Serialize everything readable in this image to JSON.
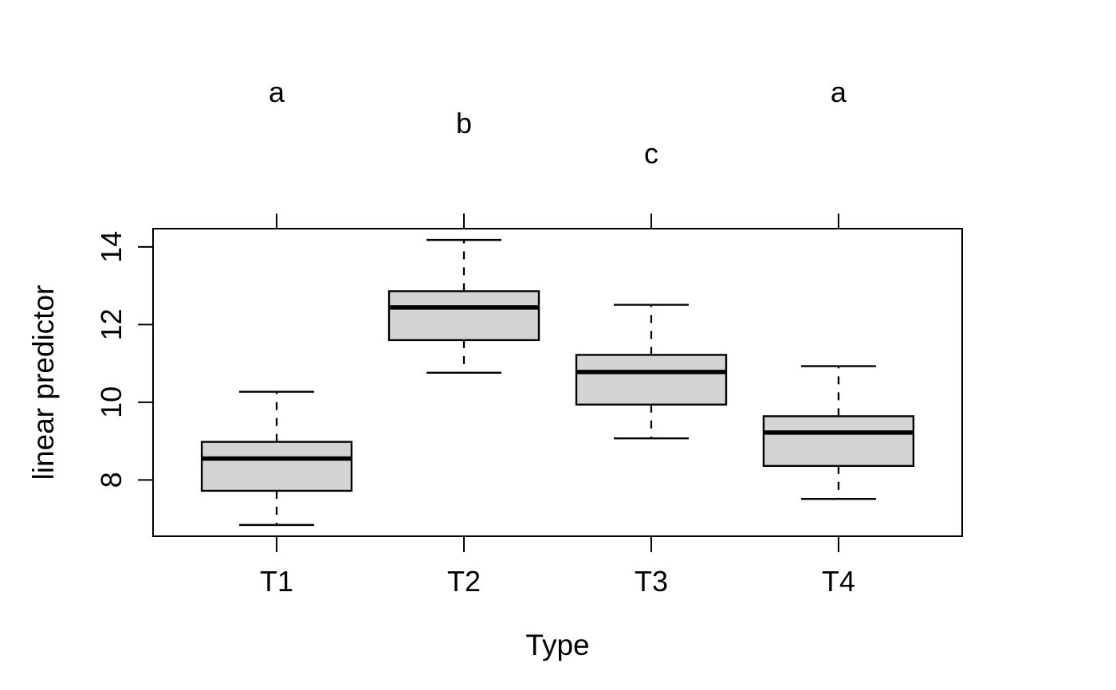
{
  "figure": {
    "background": "#ffffff",
    "text_color": "#000000"
  },
  "chart_data": {
    "type": "boxplot",
    "title": "",
    "xlabel": "Type",
    "ylabel": "linear predictor",
    "categories": [
      "T1",
      "T2",
      "T3",
      "T4"
    ],
    "series": [
      {
        "name": "T1",
        "whisker_low": 6.84,
        "q1": 7.72,
        "median": 8.55,
        "q3": 8.98,
        "whisker_high": 10.27,
        "cld_letter": "a"
      },
      {
        "name": "T2",
        "whisker_low": 10.76,
        "q1": 11.6,
        "median": 12.44,
        "q3": 12.86,
        "whisker_high": 14.18,
        "cld_letter": "b"
      },
      {
        "name": "T3",
        "whisker_low": 9.07,
        "q1": 9.94,
        "median": 10.78,
        "q3": 11.22,
        "whisker_high": 12.51,
        "cld_letter": "c"
      },
      {
        "name": "T4",
        "whisker_low": 7.51,
        "q1": 8.36,
        "median": 9.22,
        "q3": 9.64,
        "whisker_high": 10.93,
        "cld_letter": "a"
      }
    ],
    "yticks": [
      8,
      10,
      12,
      14
    ],
    "ylim": [
      6.55,
      14.47
    ],
    "grid": false,
    "legend": "none",
    "box_fill": "#d4d4d4",
    "box_stroke": "#000000",
    "whisker_style": "dashed"
  }
}
